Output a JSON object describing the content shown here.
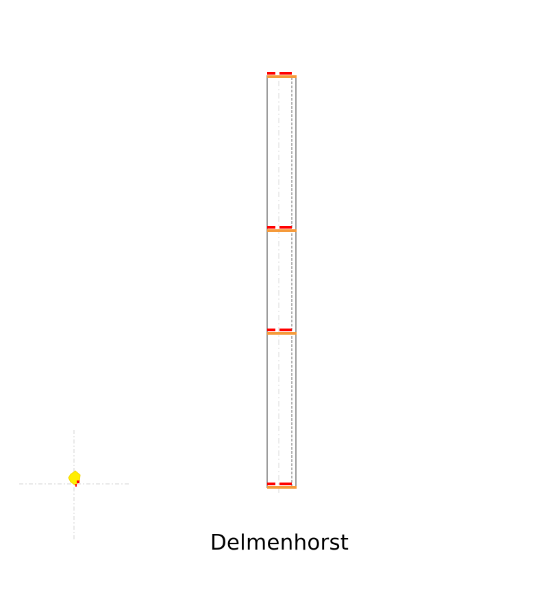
{
  "caption": "Delmenhorst",
  "diagram": {
    "floor_levels": 4,
    "colors": {
      "background": "#ffffff",
      "outline": "#808080",
      "axis": "#d9d9d9",
      "marker_red": "#ff0000",
      "marker_orange": "#f59a3a",
      "origin_yellow": "#ffee00",
      "caption_text": "#000000"
    },
    "icons": [
      "origin-marker-icon"
    ]
  }
}
